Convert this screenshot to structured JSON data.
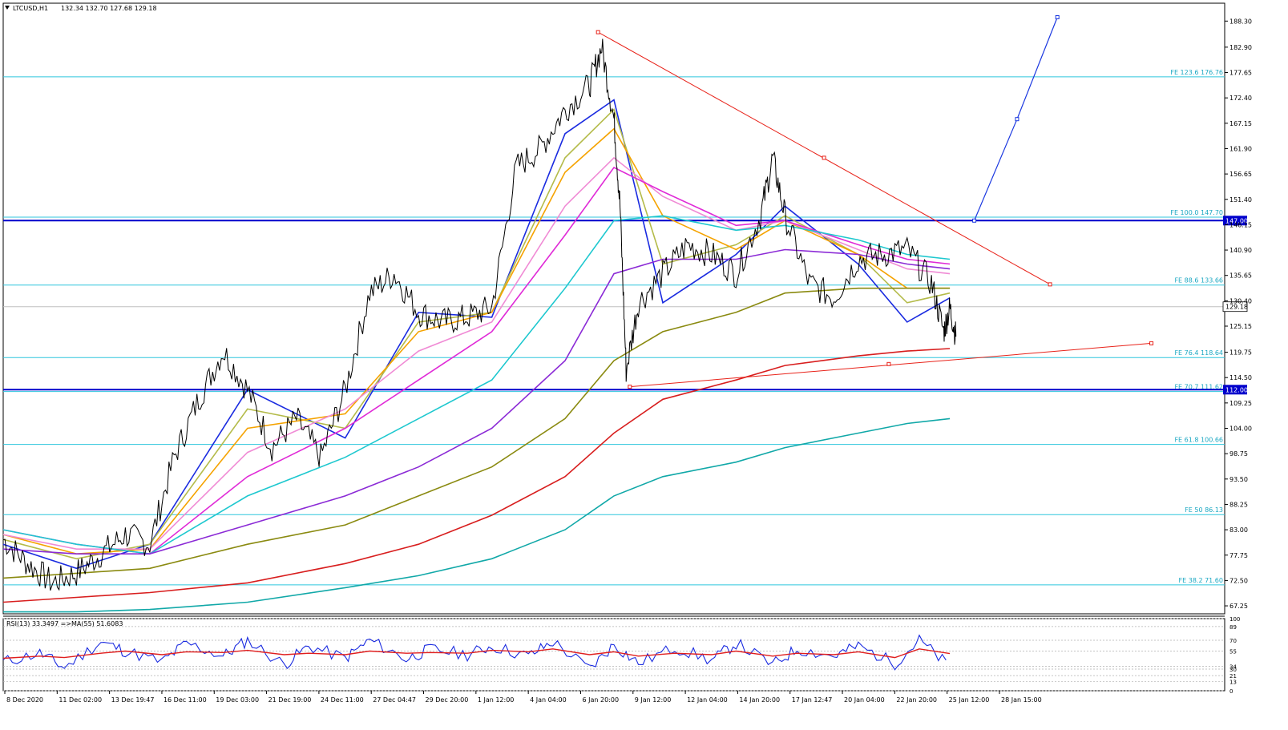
{
  "chart_data": {
    "type": "line",
    "symbol": "LTCUSD,H1",
    "ohlc_readout": "132.34 132.70 127.68 129.18",
    "price_axis": {
      "range": [
        65.6,
        192.0
      ],
      "ticks": [
        "188.30",
        "182.90",
        "177.65",
        "172.40",
        "167.15",
        "161.90",
        "156.65",
        "151.40",
        "146.15",
        "140.90",
        "135.65",
        "130.40",
        "125.15",
        "119.75",
        "114.50",
        "109.25",
        "104.00",
        "98.75",
        "93.50",
        "88.25",
        "83.00",
        "77.75",
        "72.50",
        "67.25"
      ],
      "tick_values": [
        188.3,
        182.9,
        177.65,
        172.4,
        167.15,
        161.9,
        156.65,
        151.4,
        146.15,
        140.9,
        135.65,
        130.4,
        125.15,
        119.75,
        114.5,
        109.25,
        104.0,
        98.75,
        93.5,
        88.25,
        83.0,
        77.75,
        72.5,
        67.25
      ]
    },
    "time_axis": {
      "labels": [
        "8 Dec 2020",
        "11 Dec 02:00",
        "13 Dec 19:47",
        "16 Dec 11:00",
        "19 Dec 03:00",
        "21 Dec 19:00",
        "24 Dec 11:00",
        "27 Dec 04:47",
        "29 Dec 20:00",
        "1 Jan 12:00",
        "4 Jan 04:00",
        "6 Jan 20:00",
        "9 Jan 12:00",
        "12 Jan 04:00",
        "14 Jan 20:00",
        "17 Jan 12:47",
        "20 Jan 04:00",
        "22 Jan 20:00",
        "25 Jan 12:00",
        "28 Jan 15:00"
      ]
    },
    "current_price": 129.18,
    "current_price_label": "129.18",
    "horizontal_levels": [
      {
        "label": "147.00",
        "value": 147.0,
        "color": "#0000cc"
      },
      {
        "label": "112.00",
        "value": 112.0,
        "color": "#0000cc"
      }
    ],
    "fibonacci_levels": [
      {
        "label": "FE 123.6 176.76",
        "value": 176.76
      },
      {
        "label": "FE 100.0 147.70",
        "value": 147.7
      },
      {
        "label": "FE 88.6 133.66",
        "value": 133.66
      },
      {
        "label": "FE 76.4 118.64",
        "value": 118.64
      },
      {
        "label": "FE 70.7 111.62",
        "value": 111.62
      },
      {
        "label": "FE 61.8 100.66",
        "value": 100.66
      },
      {
        "label": "FE 50 86.13",
        "value": 86.13
      },
      {
        "label": "FE 38.2 71.60",
        "value": 71.6
      }
    ],
    "trendlines": [
      {
        "color": "#e8231a",
        "from": {
          "t": 0.487,
          "p": 186.0
        },
        "mid": {
          "t": 0.672,
          "p": 160.0
        },
        "to": {
          "t": 0.857,
          "p": 133.8
        }
      },
      {
        "color": "#e8231a",
        "from": {
          "t": 0.513,
          "p": 112.6
        },
        "mid": {
          "t": 0.725,
          "p": 117.3
        },
        "to": {
          "t": 0.94,
          "p": 121.6
        }
      }
    ],
    "projection": {
      "color": "#1b38e0",
      "points": [
        {
          "t": 0.795,
          "p": 147.0
        },
        {
          "t": 0.83,
          "p": 168.0
        },
        {
          "t": 0.863,
          "p": 189.1
        }
      ]
    },
    "price_series": {
      "t": [
        0,
        0.02,
        0.04,
        0.06,
        0.08,
        0.1,
        0.12,
        0.14,
        0.16,
        0.18,
        0.2,
        0.22,
        0.24,
        0.26,
        0.28,
        0.3,
        0.32,
        0.34,
        0.36,
        0.38,
        0.4,
        0.42,
        0.44,
        0.46,
        0.48,
        0.49,
        0.5,
        0.505,
        0.51,
        0.52,
        0.54,
        0.56,
        0.58,
        0.6,
        0.62,
        0.63,
        0.64,
        0.66,
        0.68,
        0.7,
        0.72,
        0.74,
        0.76,
        0.78,
        0.77,
        0.775
      ],
      "close": [
        81,
        76,
        72,
        74,
        78,
        82,
        80,
        98,
        110,
        120,
        112,
        100,
        106,
        98,
        112,
        132,
        136,
        128,
        126,
        127,
        129,
        158,
        162,
        170,
        175,
        183,
        168,
        150,
        116,
        130,
        136,
        142,
        140,
        136,
        148,
        160,
        148,
        134,
        131,
        139,
        140,
        141,
        134,
        123,
        124,
        129
      ]
    },
    "moving_averages": [
      {
        "name": "ma-blue",
        "color": "#1a2be0",
        "t": [
          0,
          0.06,
          0.12,
          0.2,
          0.28,
          0.34,
          0.4,
          0.46,
          0.5,
          0.54,
          0.6,
          0.64,
          0.7,
          0.74,
          0.775
        ],
        "p": [
          80,
          75,
          80,
          112,
          102,
          128,
          127,
          165,
          172,
          130,
          140,
          150,
          138,
          126,
          131
        ]
      },
      {
        "name": "ma-yellowgreen",
        "color": "#b4bb4a",
        "t": [
          0,
          0.06,
          0.12,
          0.2,
          0.28,
          0.34,
          0.4,
          0.46,
          0.5,
          0.54,
          0.6,
          0.64,
          0.7,
          0.74,
          0.775
        ],
        "p": [
          81,
          77,
          80,
          108,
          104,
          126,
          128,
          160,
          170,
          138,
          142,
          148,
          140,
          130,
          132
        ]
      },
      {
        "name": "ma-orange",
        "color": "#f5a300",
        "t": [
          0,
          0.06,
          0.12,
          0.2,
          0.28,
          0.34,
          0.4,
          0.46,
          0.5,
          0.54,
          0.6,
          0.64,
          0.7,
          0.74,
          0.775
        ],
        "p": [
          82,
          78,
          79,
          104,
          107,
          124,
          128,
          157,
          166,
          148,
          141,
          147,
          140,
          133,
          133
        ]
      },
      {
        "name": "ma-pink",
        "color": "#f08bd5",
        "t": [
          0,
          0.06,
          0.12,
          0.2,
          0.28,
          0.34,
          0.4,
          0.46,
          0.5,
          0.54,
          0.6,
          0.64,
          0.7,
          0.74,
          0.775
        ],
        "p": [
          82,
          79,
          79,
          99,
          108,
          120,
          126,
          150,
          160,
          152,
          145,
          147,
          141,
          137,
          136
        ]
      },
      {
        "name": "ma-magenta",
        "color": "#e02ad7",
        "t": [
          0,
          0.06,
          0.12,
          0.2,
          0.28,
          0.34,
          0.4,
          0.46,
          0.5,
          0.54,
          0.6,
          0.64,
          0.7,
          0.74,
          0.775
        ],
        "p": [
          83,
          80,
          78,
          94,
          104,
          114,
          124,
          144,
          158,
          153,
          146,
          147,
          142,
          139,
          138
        ]
      },
      {
        "name": "ma-cyan",
        "color": "#1ec8cf",
        "t": [
          0,
          0.06,
          0.12,
          0.2,
          0.28,
          0.34,
          0.4,
          0.46,
          0.5,
          0.54,
          0.6,
          0.64,
          0.7,
          0.74,
          0.775
        ],
        "p": [
          83,
          80,
          78,
          90,
          98,
          106,
          114,
          133,
          147,
          148,
          145,
          146,
          143,
          140,
          139
        ]
      },
      {
        "name": "ma-purple",
        "color": "#8b2ad6",
        "t": [
          0,
          0.06,
          0.12,
          0.2,
          0.28,
          0.34,
          0.4,
          0.46,
          0.5,
          0.54,
          0.6,
          0.64,
          0.7,
          0.74,
          0.775
        ],
        "p": [
          79,
          78,
          78,
          84,
          90,
          96,
          104,
          118,
          136,
          139,
          139,
          141,
          140,
          138,
          137
        ]
      },
      {
        "name": "ma-olive",
        "color": "#8a8a10",
        "t": [
          0,
          0.06,
          0.12,
          0.2,
          0.28,
          0.34,
          0.4,
          0.46,
          0.5,
          0.54,
          0.6,
          0.64,
          0.7,
          0.74,
          0.775
        ],
        "p": [
          73,
          74,
          75,
          80,
          84,
          90,
          96,
          106,
          118,
          124,
          128,
          132,
          133,
          133,
          133
        ]
      },
      {
        "name": "ma-red",
        "color": "#d81e1e",
        "t": [
          0,
          0.06,
          0.12,
          0.2,
          0.28,
          0.34,
          0.4,
          0.46,
          0.5,
          0.54,
          0.6,
          0.64,
          0.7,
          0.74,
          0.775
        ],
        "p": [
          68,
          69,
          70,
          72,
          76,
          80,
          86,
          94,
          103,
          110,
          114,
          117,
          119,
          120,
          120.5
        ]
      },
      {
        "name": "ma-teal",
        "color": "#11a8a8",
        "t": [
          0,
          0.06,
          0.12,
          0.2,
          0.28,
          0.34,
          0.4,
          0.46,
          0.5,
          0.54,
          0.6,
          0.64,
          0.7,
          0.74,
          0.775
        ],
        "p": [
          66,
          66,
          66.5,
          68,
          71,
          73.5,
          77,
          83,
          90,
          94,
          97,
          100,
          103,
          105,
          106
        ]
      }
    ],
    "rsi_panel": {
      "label": "RSI(13) 33.3497  =>MA(55) 51.6083",
      "range": [
        0,
        100
      ],
      "ticks": [
        "100",
        "89",
        "70",
        "55",
        "34",
        "30",
        "21",
        "13",
        "0"
      ],
      "tick_values": [
        100,
        89,
        70,
        55,
        34,
        30,
        21,
        13,
        0
      ],
      "rsi_color": "#1a2be0",
      "ma_color": "#e01e1e",
      "t": [
        0,
        0.03,
        0.05,
        0.08,
        0.1,
        0.13,
        0.15,
        0.18,
        0.2,
        0.23,
        0.25,
        0.28,
        0.3,
        0.33,
        0.35,
        0.38,
        0.4,
        0.43,
        0.45,
        0.48,
        0.5,
        0.52,
        0.55,
        0.58,
        0.6,
        0.63,
        0.65,
        0.68,
        0.7,
        0.73,
        0.75,
        0.775
      ],
      "rsi": [
        40,
        52,
        32,
        68,
        55,
        40,
        66,
        48,
        70,
        36,
        62,
        45,
        70,
        44,
        58,
        50,
        62,
        48,
        68,
        30,
        64,
        38,
        60,
        42,
        66,
        36,
        58,
        48,
        62,
        38,
        70,
        33
      ],
      "rsi_ma": [
        45,
        48,
        46,
        52,
        55,
        50,
        54,
        53,
        56,
        50,
        52,
        50,
        55,
        52,
        53,
        52,
        56,
        54,
        58,
        50,
        54,
        48,
        52,
        50,
        55,
        48,
        52,
        50,
        54,
        46,
        58,
        51.6
      ]
    }
  }
}
